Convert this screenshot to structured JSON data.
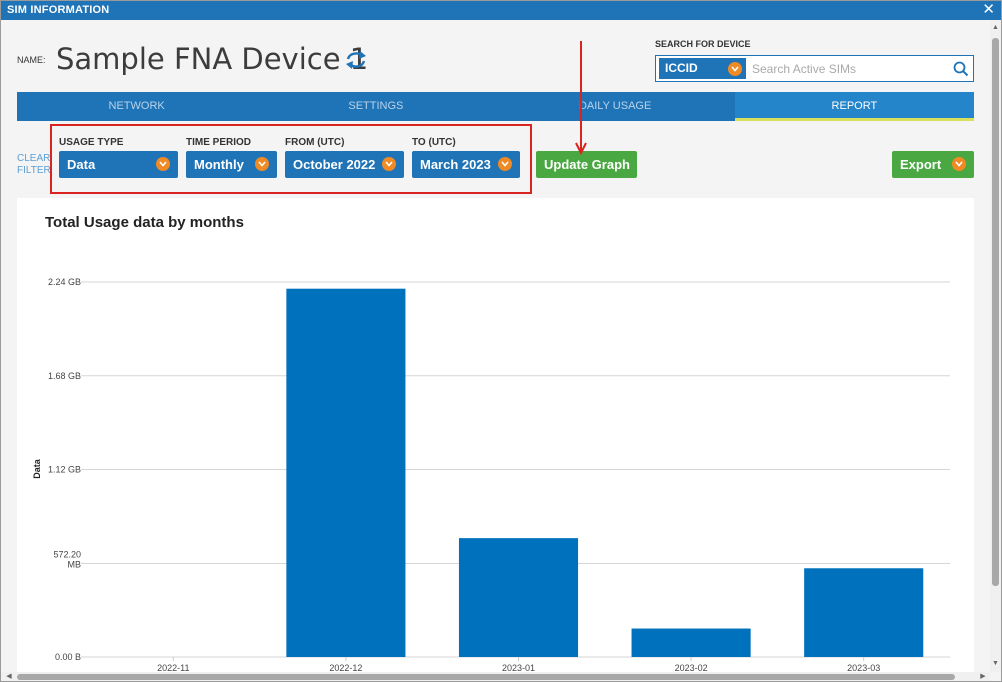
{
  "window": {
    "title": "SIM INFORMATION",
    "close_glyph": "✕"
  },
  "device": {
    "name_label": "NAME:",
    "name": "Sample FNA Device 1"
  },
  "search": {
    "label": "SEARCH FOR DEVICE",
    "type_value": "ICCID",
    "placeholder": "Search Active SIMs"
  },
  "tabs": [
    {
      "label": "NETWORK",
      "active": false
    },
    {
      "label": "SETTINGS",
      "active": false
    },
    {
      "label": "DAILY USAGE",
      "active": false
    },
    {
      "label": "REPORT",
      "active": true
    }
  ],
  "filters": {
    "clear_filter": "CLEAR FILTER",
    "usage_type": {
      "label": "USAGE TYPE",
      "value": "Data"
    },
    "time_period": {
      "label": "TIME PERIOD",
      "value": "Monthly"
    },
    "from": {
      "label": "FROM (UTC)",
      "value": "October 2022"
    },
    "to": {
      "label": "TO (UTC)",
      "value": "March 2023"
    }
  },
  "actions": {
    "update_graph": "Update Graph",
    "export": "Export"
  },
  "colors": {
    "primary": "#1f73b7",
    "accent_orange": "#ef8a24",
    "green": "#4aa842",
    "highlight_red": "#d9241f",
    "bar": "#0071bc"
  },
  "chart_data": {
    "type": "bar",
    "title": "Total Usage data by months",
    "ylabel": "Data",
    "xlabel": "",
    "categories": [
      "2022-11",
      "2022-12",
      "2023-01",
      "2023-02",
      "2023-03"
    ],
    "values_gb": [
      0,
      2.2,
      0.71,
      0.17,
      0.53
    ],
    "yticks": [
      {
        "label": "0.00 B",
        "value": 0
      },
      {
        "label": "572.20 MB",
        "value": 0.5588
      },
      {
        "label": "1.12 GB",
        "value": 1.12
      },
      {
        "label": "1.68 GB",
        "value": 1.68
      },
      {
        "label": "2.24 GB",
        "value": 2.24
      }
    ],
    "ylim": [
      0,
      2.24
    ],
    "grid": true
  }
}
